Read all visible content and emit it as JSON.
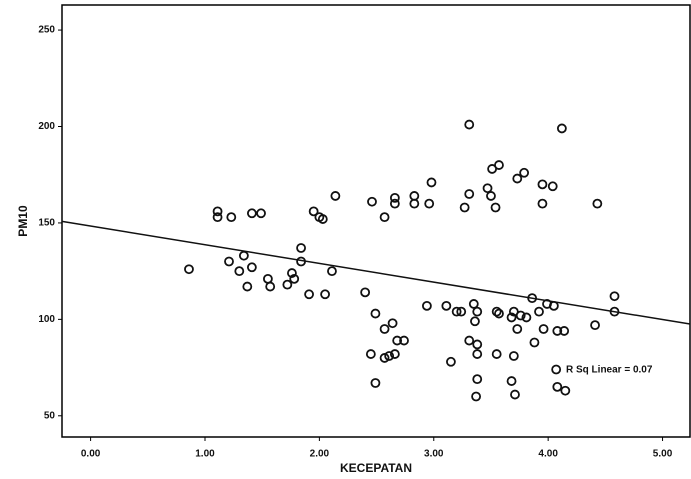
{
  "chart_data": {
    "type": "scatter",
    "x_label": "KECEPATAN",
    "y_label": "PM10",
    "annotation": "R Sq Linear = 0.07",
    "color": "#111111",
    "xlim": [
      -0.25,
      5.24
    ],
    "ylim": [
      39,
      263
    ],
    "xticks": [
      {
        "value": 0,
        "label": "0.00"
      },
      {
        "value": 1,
        "label": "1.00"
      },
      {
        "value": 2,
        "label": "2.00"
      },
      {
        "value": 3,
        "label": "3.00"
      },
      {
        "value": 4,
        "label": "4.00"
      },
      {
        "value": 5,
        "label": "5.00"
      }
    ],
    "yticks": [
      50,
      100,
      150,
      200,
      250
    ],
    "fit": {
      "intercept": 148.4,
      "slope": -9.7
    },
    "x": [
      0.86,
      1.11,
      1.11,
      1.23,
      1.41,
      1.49,
      1.21,
      1.3,
      1.34,
      1.41,
      1.37,
      1.55,
      1.57,
      1.72,
      1.76,
      1.78,
      1.84,
      1.84,
      1.91,
      1.95,
      2.0,
      2.03,
      2.14,
      2.05,
      2.11,
      2.46,
      2.57,
      2.66,
      2.66,
      2.83,
      2.83,
      2.98,
      2.96,
      2.4,
      2.49,
      2.45,
      2.49,
      2.57,
      2.64,
      2.61,
      2.68,
      2.74,
      2.66,
      2.57,
      2.94,
      3.11,
      3.15,
      3.2,
      3.24,
      3.31,
      3.27,
      3.31,
      3.47,
      3.51,
      3.57,
      3.5,
      3.54,
      3.35,
      3.38,
      3.36,
      3.31,
      3.38,
      3.38,
      3.38,
      3.37,
      3.55,
      3.57,
      3.55,
      3.68,
      3.7,
      3.73,
      3.76,
      3.81,
      3.7,
      3.68,
      3.71,
      3.86,
      3.88,
      3.92,
      3.95,
      3.95,
      4.04,
      3.99,
      4.05,
      3.96,
      4.08,
      4.14,
      4.07,
      4.08,
      4.15,
      4.12,
      3.73,
      3.79,
      4.43,
      4.41,
      4.58,
      4.58
    ],
    "y": [
      126,
      156,
      153,
      153,
      155,
      155,
      130,
      125,
      133,
      127,
      117,
      121,
      117,
      118,
      124,
      121,
      137,
      130,
      113,
      156,
      153,
      152,
      164,
      113,
      125,
      161,
      153,
      160,
      163,
      164,
      160,
      171,
      160,
      114,
      103,
      82,
      67,
      95,
      98,
      81,
      89,
      89,
      82,
      80,
      107,
      107,
      78,
      104,
      104,
      201,
      158,
      165,
      168,
      178,
      180,
      164,
      158,
      108,
      104,
      99,
      89,
      87,
      82,
      69,
      60,
      104,
      103,
      82,
      101,
      104,
      95,
      102,
      101,
      81,
      68,
      61,
      111,
      88,
      104,
      170,
      160,
      169,
      108,
      107,
      95,
      94,
      94,
      74,
      65,
      63,
      199,
      173,
      176,
      160,
      97,
      112,
      104
    ]
  }
}
